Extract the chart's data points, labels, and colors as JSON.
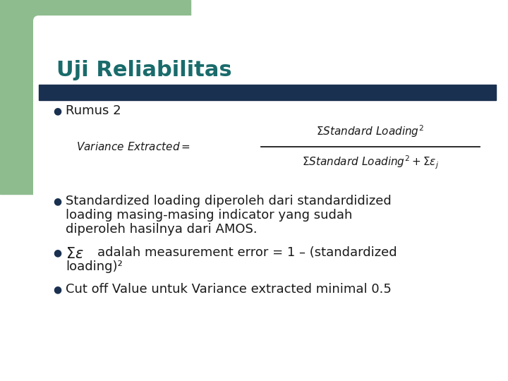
{
  "title": "Uji Reliabilitas",
  "title_color": "#1a6b6b",
  "title_fontsize": 22,
  "bg_color": "#ffffff",
  "green_rect_color": "#8fbc8f",
  "dark_bar_color": "#1a3050",
  "bullet_color": "#1a3050",
  "text_color": "#1a1a1a",
  "bullet1": "Rumus 2",
  "bullet2_line1": "Standardized loading diperoleh dari standardidized",
  "bullet2_line2": "loading masing-masing indicator yang sudah",
  "bullet2_line3": "diperoleh hasilnya dari AMOS.",
  "bullet3_line1": "adalah measurement error = 1 – (standardized",
  "bullet3_line2": "loading)²",
  "bullet4": "Cut off Value untuk Variance extracted minimal 0.5",
  "font_size_body": 13,
  "font_size_formula": 11
}
